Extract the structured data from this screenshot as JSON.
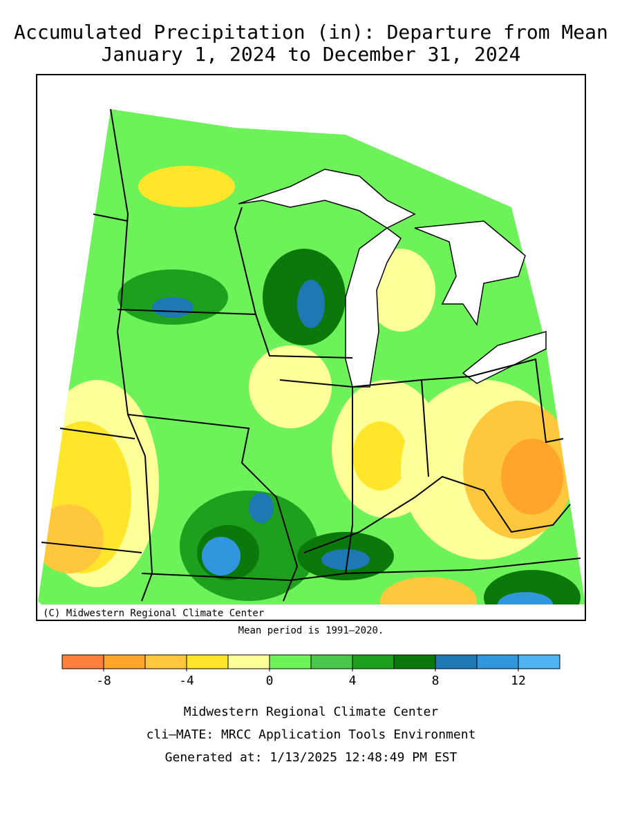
{
  "header": {
    "title": "Accumulated Precipitation (in): Departure from Mean",
    "subtitle": "January 1, 2024 to December 31, 2024"
  },
  "map": {
    "credit": "(C) Midwestern Regional Climate Center",
    "note": "Mean period is 1991–2020."
  },
  "legend": {
    "bins": [
      -10,
      -8,
      -6,
      -4,
      -2,
      0,
      2,
      4,
      6,
      8,
      10,
      12,
      14
    ],
    "colors": [
      "#ff7f3f",
      "#ffa52a",
      "#ffc83c",
      "#ffe62a",
      "#ffff9a",
      "#6ef25a",
      "#4bc84b",
      "#1ea01e",
      "#0a780a",
      "#1e78b4",
      "#3296dc",
      "#50b4f0"
    ],
    "ticks": [
      -8,
      -4,
      0,
      4,
      8,
      12
    ]
  },
  "footer": {
    "lines": [
      "Midwestern Regional Climate Center",
      "cli–MATE: MRCC Application Tools Environment",
      "Generated at: 1/13/2025 12:48:49 PM EST"
    ]
  }
}
